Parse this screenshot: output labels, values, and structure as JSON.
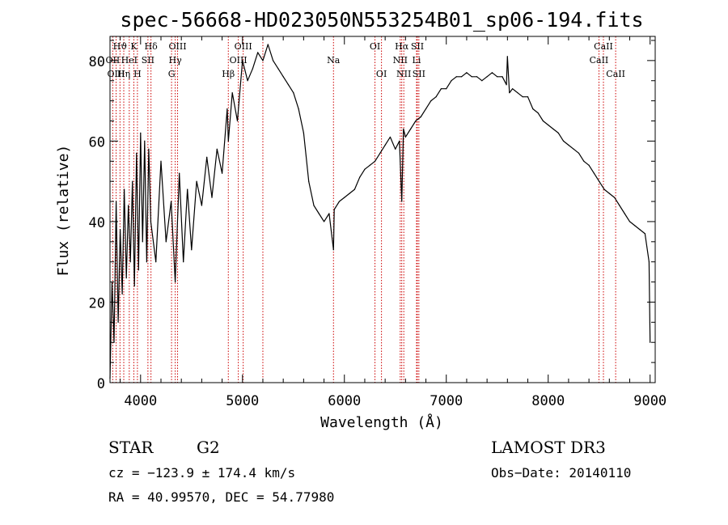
{
  "chart_data": {
    "type": "line",
    "title": "spec-56668-HD023050N553254B01_sp06-194.fits",
    "xlabel": "Wavelength (Å)",
    "ylabel": "Flux (relative)",
    "xlim": [
      3700,
      9050
    ],
    "ylim": [
      0,
      86
    ],
    "x_ticks": [
      4000,
      5000,
      6000,
      7000,
      8000,
      9000
    ],
    "y_ticks": [
      0,
      20,
      40,
      60,
      80
    ],
    "grid": false,
    "series": [
      {
        "name": "flux",
        "x": [
          3700,
          3720,
          3740,
          3760,
          3780,
          3800,
          3820,
          3840,
          3860,
          3880,
          3900,
          3920,
          3940,
          3960,
          3980,
          4000,
          4020,
          4040,
          4060,
          4080,
          4100,
          4150,
          4200,
          4250,
          4300,
          4340,
          4380,
          4420,
          4460,
          4500,
          4550,
          4600,
          4650,
          4700,
          4750,
          4800,
          4850,
          4861,
          4900,
          4950,
          5000,
          5050,
          5100,
          5150,
          5200,
          5250,
          5300,
          5350,
          5400,
          5450,
          5500,
          5550,
          5600,
          5650,
          5700,
          5750,
          5800,
          5850,
          5893,
          5900,
          5950,
          6000,
          6050,
          6100,
          6150,
          6200,
          6250,
          6300,
          6350,
          6400,
          6450,
          6500,
          6540,
          6563,
          6580,
          6600,
          6650,
          6700,
          6750,
          6800,
          6850,
          6900,
          6950,
          7000,
          7050,
          7100,
          7150,
          7200,
          7250,
          7300,
          7350,
          7400,
          7450,
          7500,
          7550,
          7590,
          7600,
          7620,
          7650,
          7700,
          7750,
          7800,
          7850,
          7900,
          7950,
          8000,
          8050,
          8100,
          8150,
          8200,
          8250,
          8300,
          8350,
          8400,
          8450,
          8500,
          8550,
          8600,
          8650,
          8700,
          8750,
          8800,
          8850,
          8900,
          8950,
          8990,
          9000
        ],
        "values": [
          1,
          25,
          10,
          45,
          15,
          38,
          22,
          48,
          26,
          44,
          30,
          50,
          24,
          57,
          28,
          62,
          35,
          60,
          30,
          58,
          40,
          30,
          55,
          35,
          45,
          25,
          52,
          30,
          48,
          33,
          50,
          44,
          56,
          46,
          58,
          52,
          68,
          60,
          72,
          65,
          80,
          75,
          78,
          82,
          80,
          84,
          80,
          78,
          76,
          74,
          72,
          68,
          62,
          50,
          44,
          42,
          40,
          42,
          33,
          43,
          45,
          46,
          47,
          48,
          51,
          53,
          54,
          55,
          57,
          59,
          61,
          58,
          60,
          45,
          63,
          61,
          63,
          65,
          66,
          68,
          70,
          71,
          73,
          73,
          75,
          76,
          76,
          77,
          76,
          76,
          75,
          76,
          77,
          76,
          76,
          74,
          81,
          72,
          73,
          72,
          71,
          71,
          68,
          67,
          65,
          64,
          63,
          62,
          60,
          59,
          58,
          57,
          55,
          54,
          52,
          50,
          48,
          47,
          46,
          44,
          42,
          40,
          39,
          38,
          37,
          30,
          10
        ]
      }
    ],
    "line_markers": [
      {
        "label": "Hϑ",
        "wavelength": 3798,
        "row": 1
      },
      {
        "label": "OII",
        "wavelength": 3727,
        "row": 2
      },
      {
        "label": "OIII",
        "wavelength": 3760,
        "row": 3
      },
      {
        "label": "Hη",
        "wavelength": 3835,
        "row": 3
      },
      {
        "label": "K",
        "wavelength": 3934,
        "row": 1
      },
      {
        "label": "HeI",
        "wavelength": 3889,
        "row": 2
      },
      {
        "label": "H",
        "wavelength": 3969,
        "row": 3
      },
      {
        "label": "Hδ",
        "wavelength": 4102,
        "row": 1
      },
      {
        "label": "SII",
        "wavelength": 4072,
        "row": 2
      },
      {
        "label": "OIII",
        "wavelength": 4363,
        "row": 1
      },
      {
        "label": "Hγ",
        "wavelength": 4340,
        "row": 2
      },
      {
        "label": "G",
        "wavelength": 4304,
        "row": 3
      },
      {
        "label": "Hβ",
        "wavelength": 4861,
        "row": 3
      },
      {
        "label": "OIII",
        "wavelength": 5007,
        "row": 1
      },
      {
        "label": "OIII",
        "wavelength": 4959,
        "row": 2
      },
      {
        "label": "",
        "wavelength": 5200,
        "row": 0
      },
      {
        "label": "Na",
        "wavelength": 5893,
        "row": 2
      },
      {
        "label": "OI",
        "wavelength": 6300,
        "row": 1
      },
      {
        "label": "OI",
        "wavelength": 6364,
        "row": 3
      },
      {
        "label": "Hα",
        "wavelength": 6563,
        "row": 1
      },
      {
        "label": "NII",
        "wavelength": 6548,
        "row": 2
      },
      {
        "label": "NII",
        "wavelength": 6583,
        "row": 3
      },
      {
        "label": "SII",
        "wavelength": 6716,
        "row": 1
      },
      {
        "label": "Li",
        "wavelength": 6708,
        "row": 2
      },
      {
        "label": "SII",
        "wavelength": 6731,
        "row": 3
      },
      {
        "label": "CaII",
        "wavelength": 8542,
        "row": 1
      },
      {
        "label": "CaII",
        "wavelength": 8498,
        "row": 2
      },
      {
        "label": "CaII",
        "wavelength": 8662,
        "row": 3
      }
    ]
  },
  "info": {
    "object_class": "STAR",
    "subclass": "G2",
    "survey": "LAMOST DR3",
    "cz": "cz = −123.9 ± 174.4 km/s",
    "obs_date": "Obs−Date: 20140110",
    "coords": "RA =  40.99570, DEC =  54.77980"
  },
  "colors": {
    "axis": "#000000",
    "spectrum": "#000000",
    "marker_line": "#cc0000",
    "background": "#ffffff"
  }
}
